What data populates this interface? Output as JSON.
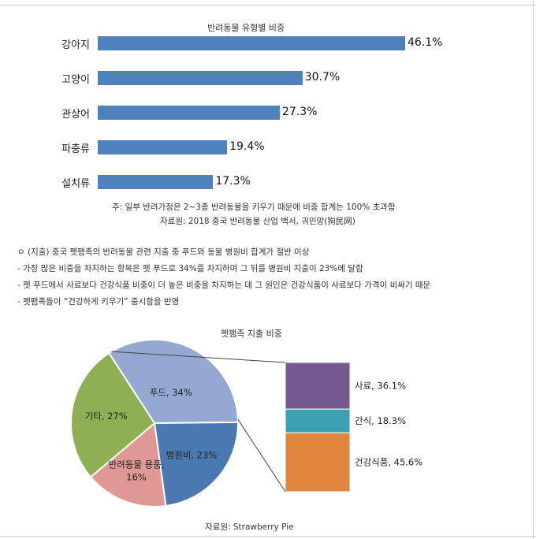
{
  "bar_chart_title": "반려동물 유형별 비중",
  "note": "주: 일부 반려가정은 2~3종 반려동물을 키우기 때문에 비중 합계는 100% 초과함",
  "source1": "자료원: 2018 중국 반려동물 산업 백서, 궈민망(狗民网)",
  "bullets": [
    "ㅇ (지출) 중국 펫팸족의 반려동물 관련 지출 중 푸드와 동물 병원비 합계가 절반 이상",
    " - 가장 많은 비중을 차지하는 항목은 펫 푸드로 34%를 차지하며 그 뒤를 병원비 지출이 23%에 달함",
    " - 펫 푸드에서 사료보다 건강식품 비중이 더 높은 비중을 차지하는 데 그 원인은 건강식품이 사료보다 가격이 비싸기 때문",
    " - 펫팸족들이 “건강하게 키우기” 중시함을 반영"
  ],
  "pie_chart_title": "펫팸족 지출 비중",
  "source2": "자료원: Strawberry Pie",
  "chart_data": [
    {
      "type": "bar",
      "orientation": "horizontal",
      "title": "반려동물 유형별 비중",
      "categories": [
        "강아지",
        "고양이",
        "관상어",
        "파충류",
        "설치류"
      ],
      "values": [
        46.1,
        30.7,
        27.3,
        19.4,
        17.3
      ],
      "value_labels": [
        "46.1%",
        "30.7%",
        "27.3%",
        "19.4%",
        "17.3%"
      ],
      "xlim": [
        0,
        46.1
      ],
      "color": "#4f81bd",
      "grid": false
    },
    {
      "type": "pie",
      "title": "펫팸족 지출 비중",
      "slices": [
        {
          "label": "푸드, 34%",
          "value": 34,
          "color": "#94a8d2"
        },
        {
          "label": "병원비, 23%",
          "value": 23,
          "color": "#4a78b0"
        },
        {
          "label": "반려동물 용품,",
          "label2": "16%",
          "value": 16,
          "color": "#e09894"
        },
        {
          "label": "기타, 27%",
          "value": 27,
          "color": "#8eaf52"
        }
      ]
    },
    {
      "type": "bar",
      "stacked": true,
      "breakdown_of": "푸드, 34%",
      "segments": [
        {
          "label": "사료, 36.1%",
          "value": 36.1,
          "color": "#76598f"
        },
        {
          "label": "간식, 18.3%",
          "value": 18.3,
          "color": "#3ba0b2"
        },
        {
          "label": "건강식품, 45.6%",
          "value": 45.6,
          "color": "#e0843e"
        }
      ]
    }
  ]
}
